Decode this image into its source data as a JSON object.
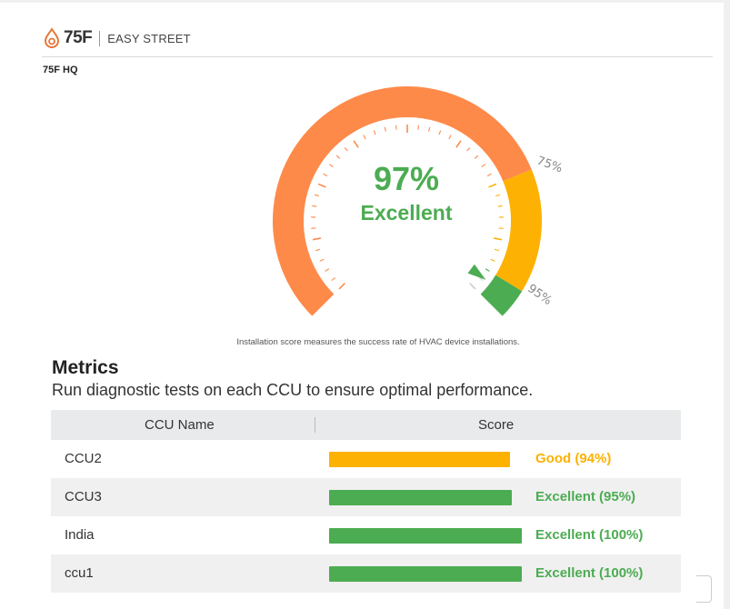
{
  "header": {
    "logo_text": "75F",
    "site_name": "EASY STREET",
    "site_sub": "75F HQ",
    "logo_icon": "flame-drop-icon"
  },
  "gauge": {
    "value_text": "97%",
    "grade": "Excellent",
    "value_fraction": 0.97,
    "threshold_labels": [
      "75%",
      "95%"
    ],
    "thresholds": [
      0.75,
      0.95
    ],
    "colors": {
      "low": "#fe8a4a",
      "mid": "#fdb103",
      "high": "#4cac52",
      "text": "#4cac52"
    },
    "caption": "Installation score measures the success rate of HVAC device installations."
  },
  "metrics": {
    "title": "Metrics",
    "subtitle": "Run diagnostic tests on each CCU to ensure optimal performance.",
    "columns": [
      "CCU Name",
      "Score"
    ],
    "rows": [
      {
        "name": "CCU2",
        "score_label": "Good (94%)",
        "fraction": 0.94,
        "color": "#fdb103"
      },
      {
        "name": "CCU3",
        "score_label": "Excellent (95%)",
        "fraction": 0.95,
        "color": "#4cac52"
      },
      {
        "name": "India",
        "score_label": "Excellent (100%)",
        "fraction": 1.0,
        "color": "#4cac52"
      },
      {
        "name": "ccu1",
        "score_label": "Excellent (100%)",
        "fraction": 1.0,
        "color": "#4cac52"
      }
    ]
  }
}
